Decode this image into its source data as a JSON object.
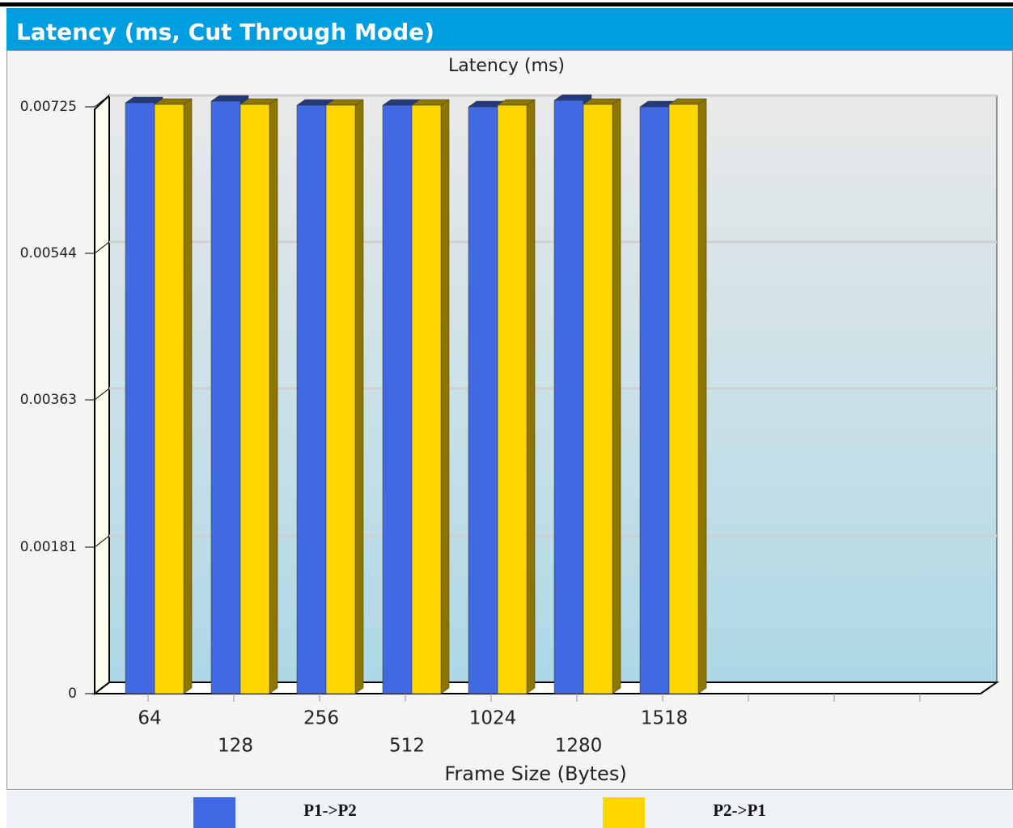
{
  "header": {
    "title": "Latency (ms, Cut Through Mode)"
  },
  "chart_data": {
    "type": "bar",
    "title": "Latency (ms)",
    "x_label": "Frame Size (Bytes)",
    "categories": [
      "64",
      "128",
      "256",
      "512",
      "1024",
      "1280",
      "1518",
      null,
      null,
      null
    ],
    "series": [
      {
        "name": "P1->P2",
        "color": "#4169e1",
        "values": [
          0.0073,
          0.00732,
          0.00727,
          0.00727,
          0.00725,
          0.00733,
          0.00725,
          null,
          null,
          null
        ]
      },
      {
        "name": "P2->P1",
        "color": "#ffd700",
        "values": [
          0.00728,
          0.00728,
          0.00727,
          0.00727,
          0.00727,
          0.00728,
          0.00728,
          null,
          null,
          null
        ]
      }
    ],
    "ylim": [
      0,
      0.0073
    ],
    "yticks": [
      0,
      0.00181,
      0.00363,
      0.00544,
      0.00725
    ],
    "grid": true,
    "legend": "bottom"
  }
}
